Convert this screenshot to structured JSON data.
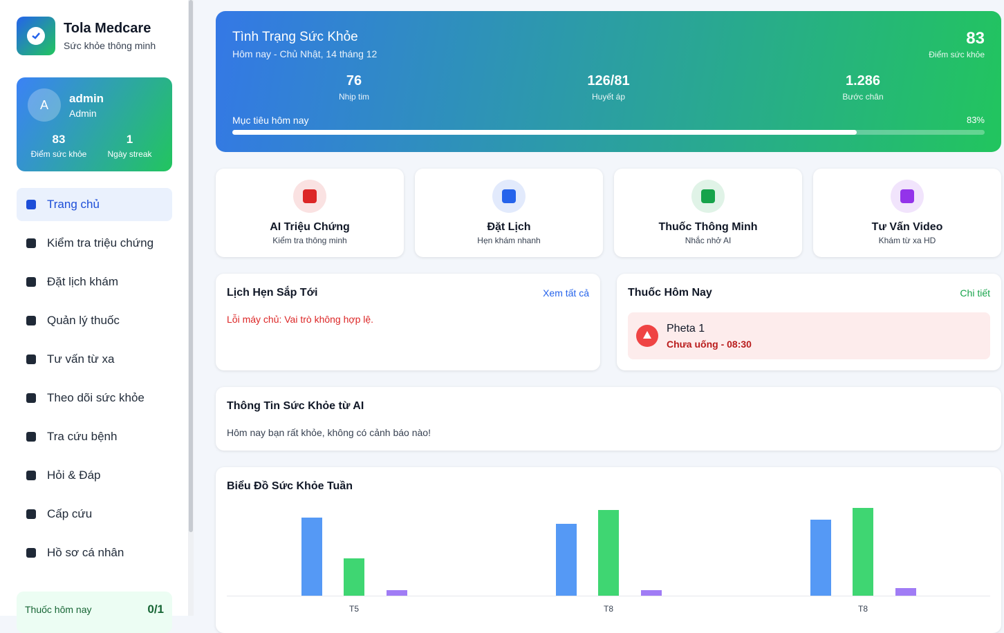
{
  "sidebar": {
    "brand": {
      "title": "Tola Medcare",
      "subtitle": "Sức khỏe thông minh"
    },
    "user": {
      "avatar": "A",
      "name": "admin",
      "role": "Admin",
      "stats": [
        {
          "value": "83",
          "label": "Điểm sức khỏe"
        },
        {
          "value": "1",
          "label": "Ngày streak"
        }
      ]
    },
    "nav": [
      "Trang chủ",
      "Kiểm tra triệu chứng",
      "Đặt lịch khám",
      "Quản lý thuốc",
      "Tư vấn từ xa",
      "Theo dõi sức khỏe",
      "Tra cứu bệnh",
      "Hỏi & Đáp",
      "Cấp cứu",
      "Hồ sơ cá nhân"
    ],
    "footer": {
      "label": "Thuốc hôm nay",
      "value": "0/1"
    }
  },
  "health": {
    "title": "Tình Trạng Sức Khỏe",
    "date": "Hôm nay - Chủ Nhật, 14 tháng 12",
    "score": "83",
    "score_label": "Điểm sức khỏe",
    "metrics": [
      {
        "value": "76",
        "label": "Nhịp tim"
      },
      {
        "value": "126/81",
        "label": "Huyết áp"
      },
      {
        "value": "1.286",
        "label": "Bước chân"
      }
    ],
    "goal_title": "Mục tiêu hôm nay",
    "goal": {
      "value": 83,
      "label": "83%"
    }
  },
  "actions": [
    {
      "title": "AI Triệu Chứng",
      "subtitle": "Kiểm tra thông minh",
      "color": "#dc2626"
    },
    {
      "title": "Đặt Lịch",
      "subtitle": "Hẹn khám nhanh",
      "color": "#2563eb"
    },
    {
      "title": "Thuốc Thông Minh",
      "subtitle": "Nhắc nhở AI",
      "color": "#16a34a"
    },
    {
      "title": "Tư Vấn Video",
      "subtitle": "Khám từ xa HD",
      "color": "#9333ea"
    }
  ],
  "appointments": {
    "title": "Lịch Hẹn Sắp Tới",
    "link": "Xem tất cả",
    "error": "Lỗi máy chủ: Vai trò không hợp lệ."
  },
  "medicines": {
    "title": "Thuốc Hôm Nay",
    "link": "Chi tiết",
    "items": [
      {
        "name": "Pheta 1",
        "status": "Chưa uống - 08:30"
      }
    ]
  },
  "ai_info": {
    "title": "Thông Tin Sức Khỏe từ AI",
    "text": "Hôm nay bạn rất khỏe, không có cảnh báo nào!"
  },
  "chart_data": {
    "type": "bar",
    "title": "Biểu Đồ Sức Khỏe Tuần",
    "categories": [
      "T5",
      "T8",
      "T8"
    ],
    "series": [
      {
        "color": "#5599f5",
        "values": [
          113,
          104,
          110
        ]
      },
      {
        "color": "#3fd672",
        "values": [
          54,
          124,
          127
        ]
      },
      {
        "color": "#a07cf5",
        "values": [
          8,
          8,
          11
        ]
      }
    ]
  }
}
